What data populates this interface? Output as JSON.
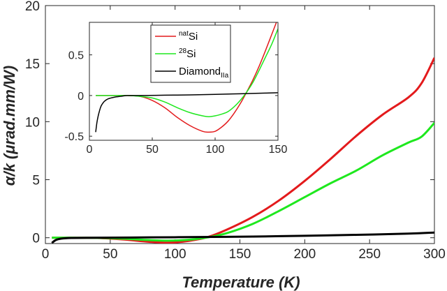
{
  "chart_data": [
    {
      "type": "line",
      "xlabel": "Temperature (K)",
      "ylabel": "α/k (μrad.mm/W)",
      "xlim": [
        0,
        300
      ],
      "ylim": [
        -0.5,
        20
      ],
      "xticks": [
        "0",
        "50",
        "100",
        "150",
        "200",
        "250",
        "300"
      ],
      "yticks": [
        "0",
        "5",
        "10",
        "15",
        "20"
      ],
      "grid": false,
      "series": [
        {
          "name": "natSi",
          "color": "#e31a1c",
          "x": [
            5,
            20,
            40,
            60,
            80,
            95,
            110,
            125,
            140,
            160,
            180,
            200,
            220,
            240,
            260,
            280,
            290,
            300
          ],
          "y": [
            0,
            0,
            -0.02,
            -0.15,
            -0.35,
            -0.42,
            -0.28,
            0.05,
            0.7,
            1.8,
            3.2,
            4.9,
            6.8,
            8.8,
            10.6,
            12.1,
            13.3,
            15.5
          ]
        },
        {
          "name": "28Si",
          "color": "#1ee81e",
          "x": [
            5,
            20,
            40,
            60,
            80,
            95,
            110,
            125,
            140,
            160,
            180,
            200,
            220,
            240,
            260,
            280,
            290,
            300
          ],
          "y": [
            0,
            0,
            -0.01,
            -0.08,
            -0.2,
            -0.25,
            -0.18,
            0.03,
            0.4,
            1.2,
            2.3,
            3.5,
            4.7,
            5.8,
            7.1,
            8.2,
            8.7,
            9.9
          ]
        },
        {
          "name": "Diamond IIa",
          "color": "#000000",
          "x": [
            5,
            8,
            12,
            20,
            40,
            80,
            120,
            160,
            200,
            240,
            280,
            300
          ],
          "y": [
            -0.45,
            -0.2,
            -0.08,
            -0.02,
            0,
            0.03,
            0.06,
            0.1,
            0.17,
            0.25,
            0.36,
            0.45
          ]
        }
      ]
    },
    {
      "type": "line",
      "xlim": [
        0,
        150
      ],
      "ylim": [
        -0.55,
        0.9
      ],
      "xticks": [
        "0",
        "50",
        "100",
        "150"
      ],
      "yticks": [
        "-0.5",
        "0",
        "0.5"
      ],
      "legend": {
        "placement": "top-right",
        "entries": [
          {
            "sup": "nat",
            "base": "Si",
            "sub": "",
            "color": "#e31a1c"
          },
          {
            "sup": "28",
            "base": "Si",
            "sub": "",
            "color": "#1ee81e"
          },
          {
            "sup": "",
            "base": "Diamond",
            "sub": "IIa",
            "color": "#000000"
          }
        ]
      },
      "series": [
        {
          "name": "natSi",
          "color": "#e31a1c",
          "x": [
            5,
            20,
            30,
            40,
            50,
            60,
            70,
            80,
            90,
            95,
            100,
            105,
            110,
            115,
            120,
            125,
            130,
            135,
            140,
            145,
            150
          ],
          "y": [
            0,
            0,
            0,
            -0.01,
            -0.06,
            -0.15,
            -0.27,
            -0.37,
            -0.44,
            -0.45,
            -0.44,
            -0.39,
            -0.32,
            -0.22,
            -0.1,
            0.04,
            0.19,
            0.36,
            0.55,
            0.75,
            0.95
          ]
        },
        {
          "name": "28Si",
          "color": "#1ee81e",
          "x": [
            5,
            20,
            30,
            40,
            50,
            60,
            70,
            80,
            90,
            95,
            100,
            105,
            110,
            115,
            120,
            125,
            130,
            135,
            140,
            145,
            150
          ],
          "y": [
            0,
            0,
            0,
            -0.01,
            -0.03,
            -0.08,
            -0.15,
            -0.21,
            -0.25,
            -0.26,
            -0.25,
            -0.23,
            -0.2,
            -0.14,
            -0.06,
            0.04,
            0.16,
            0.31,
            0.47,
            0.63,
            0.82
          ]
        },
        {
          "name": "Diamond IIa",
          "color": "#000000",
          "x": [
            5,
            6,
            7,
            8,
            9,
            10,
            12,
            15,
            20,
            25,
            30,
            40,
            60,
            80,
            100,
            120,
            140,
            150
          ],
          "y": [
            -0.45,
            -0.33,
            -0.25,
            -0.19,
            -0.14,
            -0.11,
            -0.07,
            -0.04,
            -0.02,
            -0.01,
            0,
            0,
            0.004,
            0.008,
            0.014,
            0.022,
            0.03,
            0.035
          ]
        }
      ]
    }
  ]
}
